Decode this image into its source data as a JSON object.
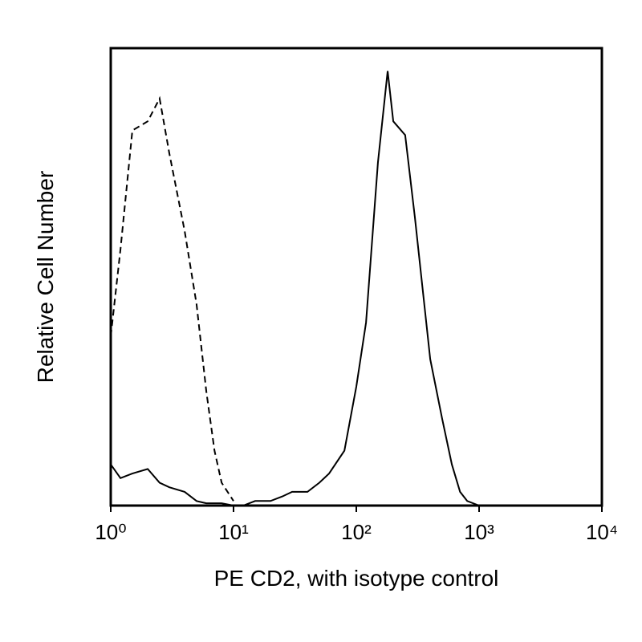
{
  "chart_data": {
    "type": "line",
    "xscale": "log",
    "xlabel": "PE CD2, with isotype control",
    "ylabel": "Relative Cell Number",
    "x": [
      1,
      1.2,
      1.5,
      2,
      2.5,
      3,
      4,
      5,
      6,
      7,
      8,
      10,
      12,
      15,
      20,
      25,
      30,
      40,
      50,
      60,
      80,
      100,
      120,
      150,
      180,
      200,
      250,
      300,
      400,
      500,
      600,
      700,
      800,
      1000
    ],
    "series": [
      {
        "color": "#000000",
        "dashed": true,
        "values": [
          37,
          56,
          82,
          84,
          89,
          77,
          60,
          44,
          25,
          12,
          5,
          1,
          null,
          null,
          null,
          null,
          null,
          null,
          null,
          null,
          null,
          null,
          null,
          null,
          null,
          null,
          null,
          null,
          null,
          null,
          null,
          null,
          null,
          null
        ]
      },
      {
        "color": "#000000",
        "dashed": false,
        "values": [
          9,
          6,
          7,
          8,
          5,
          4,
          3,
          1,
          0.5,
          0.5,
          0.5,
          0,
          0,
          1,
          1,
          2,
          3,
          3,
          5,
          7,
          12,
          26,
          40,
          75,
          95,
          84,
          81,
          63,
          32,
          19,
          9,
          3,
          1,
          0
        ]
      }
    ],
    "xlim": [
      1,
      10000
    ],
    "ylim": [
      0,
      100
    ],
    "xticks": [
      {
        "value": 1,
        "label": "10⁰"
      },
      {
        "value": 10,
        "label": "10¹"
      },
      {
        "value": 100,
        "label": "10²"
      },
      {
        "value": 1000,
        "label": "10³"
      },
      {
        "value": 10000,
        "label": "10⁴"
      }
    ]
  }
}
